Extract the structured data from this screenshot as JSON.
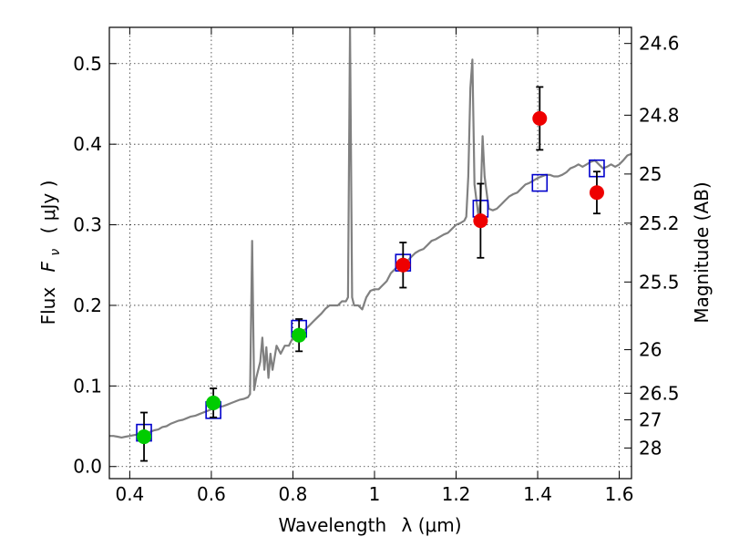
{
  "chart_data": {
    "type": "scatter",
    "title": "",
    "xlabel": "Wavelength",
    "xlabel_symbol": "λ (μm)",
    "ylabel": "Flux",
    "ylabel_symbol": "F",
    "ylabel_subscript": "ν",
    "ylabel_unit": "( μJy )",
    "y2label": "Magnitude (AB)",
    "xlim": [
      0.35,
      1.63
    ],
    "ylim": [
      -0.015,
      0.545
    ],
    "grid": true,
    "x_ticks": [
      0.4,
      0.6,
      0.8,
      1.0,
      1.2,
      1.4,
      1.6
    ],
    "x_tick_labels": [
      "0.4",
      "0.6",
      "0.8",
      "1",
      "1.2",
      "1.4",
      "1.6"
    ],
    "y_ticks": [
      0.0,
      0.1,
      0.2,
      0.3,
      0.4,
      0.5
    ],
    "y_tick_labels": [
      "0.0",
      "0.1",
      "0.2",
      "0.3",
      "0.4",
      "0.5"
    ],
    "y2_ticks": [
      {
        "label": "24.6",
        "flux": 0.525
      },
      {
        "label": "24.8",
        "flux": 0.436
      },
      {
        "label": "25",
        "flux": 0.363
      },
      {
        "label": "25.2",
        "flux": 0.302
      },
      {
        "label": "25.5",
        "flux": 0.229
      },
      {
        "label": "26",
        "flux": 0.145
      },
      {
        "label": "26.5",
        "flux": 0.091
      },
      {
        "label": "27",
        "flux": 0.058
      },
      {
        "label": "28",
        "flux": 0.023
      }
    ],
    "series": [
      {
        "kind": "line",
        "color": "#808080",
        "points": [
          [
            0.35,
            0.038
          ],
          [
            0.36,
            0.038
          ],
          [
            0.37,
            0.037
          ],
          [
            0.38,
            0.036
          ],
          [
            0.39,
            0.037
          ],
          [
            0.4,
            0.038
          ],
          [
            0.41,
            0.039
          ],
          [
            0.42,
            0.04
          ],
          [
            0.43,
            0.041
          ],
          [
            0.44,
            0.041
          ],
          [
            0.45,
            0.043
          ],
          [
            0.46,
            0.045
          ],
          [
            0.47,
            0.046
          ],
          [
            0.48,
            0.049
          ],
          [
            0.49,
            0.05
          ],
          [
            0.5,
            0.053
          ],
          [
            0.51,
            0.055
          ],
          [
            0.52,
            0.057
          ],
          [
            0.53,
            0.058
          ],
          [
            0.54,
            0.06
          ],
          [
            0.55,
            0.062
          ],
          [
            0.56,
            0.063
          ],
          [
            0.57,
            0.065
          ],
          [
            0.58,
            0.067
          ],
          [
            0.59,
            0.069
          ],
          [
            0.6,
            0.071
          ],
          [
            0.61,
            0.072
          ],
          [
            0.62,
            0.074
          ],
          [
            0.63,
            0.075
          ],
          [
            0.64,
            0.077
          ],
          [
            0.65,
            0.079
          ],
          [
            0.66,
            0.081
          ],
          [
            0.67,
            0.083
          ],
          [
            0.68,
            0.084
          ],
          [
            0.69,
            0.086
          ],
          [
            0.695,
            0.09
          ],
          [
            0.7,
            0.28
          ],
          [
            0.705,
            0.095
          ],
          [
            0.71,
            0.11
          ],
          [
            0.72,
            0.13
          ],
          [
            0.725,
            0.16
          ],
          [
            0.73,
            0.12
          ],
          [
            0.735,
            0.148
          ],
          [
            0.74,
            0.11
          ],
          [
            0.745,
            0.14
          ],
          [
            0.75,
            0.12
          ],
          [
            0.76,
            0.15
          ],
          [
            0.77,
            0.14
          ],
          [
            0.78,
            0.15
          ],
          [
            0.79,
            0.15
          ],
          [
            0.8,
            0.16
          ],
          [
            0.81,
            0.165
          ],
          [
            0.82,
            0.168
          ],
          [
            0.83,
            0.17
          ],
          [
            0.84,
            0.175
          ],
          [
            0.85,
            0.18
          ],
          [
            0.86,
            0.185
          ],
          [
            0.87,
            0.19
          ],
          [
            0.88,
            0.196
          ],
          [
            0.89,
            0.2
          ],
          [
            0.9,
            0.2
          ],
          [
            0.91,
            0.2
          ],
          [
            0.92,
            0.205
          ],
          [
            0.93,
            0.205
          ],
          [
            0.935,
            0.21
          ],
          [
            0.94,
            0.545
          ],
          [
            0.945,
            0.21
          ],
          [
            0.95,
            0.2
          ],
          [
            0.96,
            0.2
          ],
          [
            0.97,
            0.195
          ],
          [
            0.98,
            0.21
          ],
          [
            0.99,
            0.218
          ],
          [
            1.0,
            0.22
          ],
          [
            1.01,
            0.22
          ],
          [
            1.02,
            0.225
          ],
          [
            1.03,
            0.23
          ],
          [
            1.04,
            0.24
          ],
          [
            1.05,
            0.245
          ],
          [
            1.06,
            0.25
          ],
          [
            1.07,
            0.25
          ],
          [
            1.08,
            0.255
          ],
          [
            1.09,
            0.26
          ],
          [
            1.1,
            0.265
          ],
          [
            1.11,
            0.268
          ],
          [
            1.12,
            0.27
          ],
          [
            1.13,
            0.275
          ],
          [
            1.14,
            0.28
          ],
          [
            1.15,
            0.282
          ],
          [
            1.16,
            0.285
          ],
          [
            1.17,
            0.288
          ],
          [
            1.18,
            0.29
          ],
          [
            1.19,
            0.295
          ],
          [
            1.2,
            0.3
          ],
          [
            1.21,
            0.302
          ],
          [
            1.22,
            0.305
          ],
          [
            1.225,
            0.31
          ],
          [
            1.23,
            0.36
          ],
          [
            1.235,
            0.47
          ],
          [
            1.24,
            0.505
          ],
          [
            1.245,
            0.35
          ],
          [
            1.25,
            0.33
          ],
          [
            1.255,
            0.31
          ],
          [
            1.26,
            0.33
          ],
          [
            1.265,
            0.41
          ],
          [
            1.27,
            0.36
          ],
          [
            1.28,
            0.32
          ],
          [
            1.29,
            0.318
          ],
          [
            1.3,
            0.32
          ],
          [
            1.31,
            0.325
          ],
          [
            1.32,
            0.33
          ],
          [
            1.33,
            0.335
          ],
          [
            1.34,
            0.338
          ],
          [
            1.35,
            0.34
          ],
          [
            1.36,
            0.345
          ],
          [
            1.37,
            0.35
          ],
          [
            1.38,
            0.352
          ],
          [
            1.39,
            0.355
          ],
          [
            1.4,
            0.358
          ],
          [
            1.41,
            0.36
          ],
          [
            1.42,
            0.362
          ],
          [
            1.43,
            0.362
          ],
          [
            1.44,
            0.36
          ],
          [
            1.45,
            0.36
          ],
          [
            1.46,
            0.362
          ],
          [
            1.47,
            0.365
          ],
          [
            1.48,
            0.37
          ],
          [
            1.49,
            0.372
          ],
          [
            1.5,
            0.375
          ],
          [
            1.51,
            0.372
          ],
          [
            1.52,
            0.375
          ],
          [
            1.53,
            0.378
          ],
          [
            1.54,
            0.38
          ],
          [
            1.55,
            0.375
          ],
          [
            1.56,
            0.37
          ],
          [
            1.57,
            0.372
          ],
          [
            1.58,
            0.375
          ],
          [
            1.59,
            0.372
          ],
          [
            1.6,
            0.375
          ],
          [
            1.61,
            0.38
          ],
          [
            1.62,
            0.386
          ],
          [
            1.63,
            0.388
          ]
        ]
      },
      {
        "kind": "squares",
        "color": "#0000cc",
        "points": [
          [
            0.435,
            0.042
          ],
          [
            0.605,
            0.07
          ],
          [
            0.815,
            0.171
          ],
          [
            1.07,
            0.253
          ],
          [
            1.26,
            0.32
          ],
          [
            1.405,
            0.352
          ],
          [
            1.545,
            0.37
          ]
        ]
      },
      {
        "kind": "points",
        "color": "#00cc00",
        "points": [
          {
            "x": 0.435,
            "y": 0.037,
            "err": 0.03
          },
          {
            "x": 0.605,
            "y": 0.079,
            "err": 0.018
          },
          {
            "x": 0.815,
            "y": 0.163,
            "err": 0.02
          }
        ]
      },
      {
        "kind": "points",
        "color": "#ee0000",
        "points": [
          {
            "x": 1.07,
            "y": 0.25,
            "err": 0.028
          },
          {
            "x": 1.26,
            "y": 0.305,
            "err": 0.046
          },
          {
            "x": 1.405,
            "y": 0.432,
            "err": 0.039
          },
          {
            "x": 1.545,
            "y": 0.34,
            "err": 0.026
          }
        ]
      }
    ]
  }
}
